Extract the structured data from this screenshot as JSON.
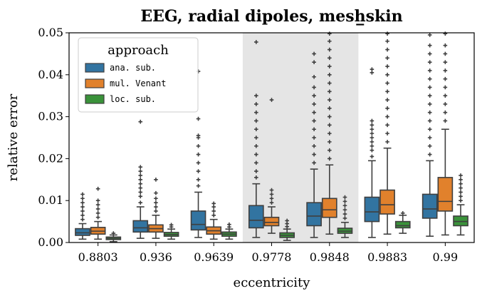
{
  "chart_data": {
    "type": "box",
    "title": "EEG, radial dipoles, mesh_skin",
    "title_display": "EEG, radial dipoles, mesh̲skin",
    "xlabel": "eccentricity",
    "ylabel": "relative error",
    "categories": [
      "0.8803",
      "0.936",
      "0.9639",
      "0.9778",
      "0.9848",
      "0.9883",
      "0.99"
    ],
    "ylim": [
      0,
      0.05
    ],
    "yticks": [
      "0.00",
      "0.01",
      "0.02",
      "0.03",
      "0.04",
      "0.05"
    ],
    "highlighted_categories": [
      "0.9778",
      "0.9848"
    ],
    "legend": {
      "title": "approach",
      "position": "top-left"
    },
    "series": [
      {
        "name": "ana. sub.",
        "color": "#3274a1",
        "boxes": [
          {
            "q1": 0.0017,
            "median": 0.0023,
            "q3": 0.0033,
            "whislo": 0.0008,
            "whishi": 0.0045,
            "fliers": [
              0.0055,
              0.0065,
              0.0075,
              0.0085,
              0.0095,
              0.0105,
              0.0115
            ]
          },
          {
            "q1": 0.0025,
            "median": 0.0035,
            "q3": 0.0052,
            "whislo": 0.001,
            "whishi": 0.0085,
            "fliers": [
              0.0095,
              0.011,
              0.012,
              0.013,
              0.014,
              0.015,
              0.016,
              0.017,
              0.018,
              0.0288
            ]
          },
          {
            "q1": 0.003,
            "median": 0.0043,
            "q3": 0.0075,
            "whislo": 0.0012,
            "whishi": 0.012,
            "fliers": [
              0.0135,
              0.015,
              0.017,
              0.019,
              0.021,
              0.023,
              0.025,
              0.0255,
              0.0295,
              0.0408
            ]
          },
          {
            "q1": 0.0035,
            "median": 0.0053,
            "q3": 0.0088,
            "whislo": 0.0012,
            "whishi": 0.014,
            "fliers": [
              0.0155,
              0.017,
              0.019,
              0.021,
              0.023,
              0.025,
              0.027,
              0.029,
              0.031,
              0.033,
              0.035,
              0.0478
            ]
          },
          {
            "q1": 0.004,
            "median": 0.0063,
            "q3": 0.0095,
            "whislo": 0.0012,
            "whishi": 0.0175,
            "fliers": [
              0.019,
              0.021,
              0.023,
              0.025,
              0.027,
              0.029,
              0.031,
              0.033,
              0.035,
              0.037,
              0.0395,
              0.043,
              0.045
            ]
          },
          {
            "q1": 0.005,
            "median": 0.0073,
            "q3": 0.0108,
            "whislo": 0.0012,
            "whishi": 0.0195,
            "fliers": [
              0.0205,
              0.022,
              0.023,
              0.024,
              0.025,
              0.026,
              0.027,
              0.028,
              0.029,
              0.0405,
              0.0413
            ]
          },
          {
            "q1": 0.0058,
            "median": 0.008,
            "q3": 0.0115,
            "whislo": 0.0015,
            "whishi": 0.0195,
            "fliers": [
              0.021,
              0.023,
              0.025,
              0.027,
              0.029,
              0.031,
              0.033,
              0.035,
              0.037,
              0.039,
              0.041,
              0.043,
              0.045,
              0.047,
              0.0495
            ]
          }
        ]
      },
      {
        "name": "mul. Venant",
        "color": "#e1812c",
        "boxes": [
          {
            "q1": 0.002,
            "median": 0.0027,
            "q3": 0.0036,
            "whislo": 0.0008,
            "whishi": 0.005,
            "fliers": [
              0.006,
              0.007,
              0.008,
              0.009,
              0.01,
              0.0128
            ]
          },
          {
            "q1": 0.0025,
            "median": 0.0033,
            "q3": 0.0042,
            "whislo": 0.001,
            "whishi": 0.0065,
            "fliers": [
              0.0075,
              0.0085,
              0.0095,
              0.0105,
              0.0118,
              0.015
            ]
          },
          {
            "q1": 0.002,
            "median": 0.0028,
            "q3": 0.0037,
            "whislo": 0.0008,
            "whishi": 0.0055,
            "fliers": [
              0.0065,
              0.0075,
              0.0085,
              0.0093
            ]
          },
          {
            "q1": 0.004,
            "median": 0.0048,
            "q3": 0.006,
            "whislo": 0.0022,
            "whishi": 0.0085,
            "fliers": [
              0.0095,
              0.0105,
              0.0115,
              0.0125,
              0.034
            ]
          },
          {
            "q1": 0.006,
            "median": 0.0078,
            "q3": 0.0105,
            "whislo": 0.002,
            "whishi": 0.0185,
            "fliers": [
              0.02,
              0.022,
              0.024,
              0.026,
              0.028,
              0.03,
              0.032,
              0.034,
              0.036,
              0.038,
              0.04,
              0.042,
              0.044,
              0.046,
              0.048,
              0.0498
            ]
          },
          {
            "q1": 0.0068,
            "median": 0.009,
            "q3": 0.0125,
            "whislo": 0.002,
            "whishi": 0.0225,
            "fliers": [
              0.024,
              0.026,
              0.028,
              0.03,
              0.032,
              0.034,
              0.036,
              0.038,
              0.04,
              0.042,
              0.044,
              0.046,
              0.048,
              0.0498
            ]
          },
          {
            "q1": 0.0075,
            "median": 0.0098,
            "q3": 0.0155,
            "whislo": 0.0018,
            "whishi": 0.027,
            "fliers": [
              0.029,
              0.031,
              0.033,
              0.035,
              0.037,
              0.039,
              0.041,
              0.043,
              0.045,
              0.047,
              0.0498
            ]
          }
        ]
      },
      {
        "name": "loc. sub.",
        "color": "#3a923a",
        "boxes": [
          {
            "q1": 0.0007,
            "median": 0.001,
            "q3": 0.0013,
            "whislo": 0.0002,
            "whishi": 0.0018,
            "fliers": [
              0.0022
            ]
          },
          {
            "q1": 0.0015,
            "median": 0.0019,
            "q3": 0.0024,
            "whislo": 0.0008,
            "whishi": 0.0032,
            "fliers": [
              0.0037,
              0.0042
            ]
          },
          {
            "q1": 0.0015,
            "median": 0.002,
            "q3": 0.0025,
            "whislo": 0.0008,
            "whishi": 0.0032,
            "fliers": [
              0.0037,
              0.0043
            ]
          },
          {
            "q1": 0.0012,
            "median": 0.0017,
            "q3": 0.0023,
            "whislo": 0.0005,
            "whishi": 0.0032,
            "fliers": [
              0.0038,
              0.0045,
              0.0052
            ]
          },
          {
            "q1": 0.0022,
            "median": 0.0027,
            "q3": 0.0034,
            "whislo": 0.0012,
            "whishi": 0.0048,
            "fliers": [
              0.0058,
              0.0068,
              0.0078,
              0.0088,
              0.0098,
              0.0108
            ]
          },
          {
            "q1": 0.0035,
            "median": 0.004,
            "q3": 0.005,
            "whislo": 0.0022,
            "whishi": 0.0065,
            "fliers": [
              0.007
            ]
          },
          {
            "q1": 0.004,
            "median": 0.005,
            "q3": 0.0063,
            "whislo": 0.0018,
            "whishi": 0.009,
            "fliers": [
              0.01,
              0.011,
              0.012,
              0.013,
              0.014,
              0.015,
              0.016
            ]
          }
        ]
      }
    ]
  }
}
